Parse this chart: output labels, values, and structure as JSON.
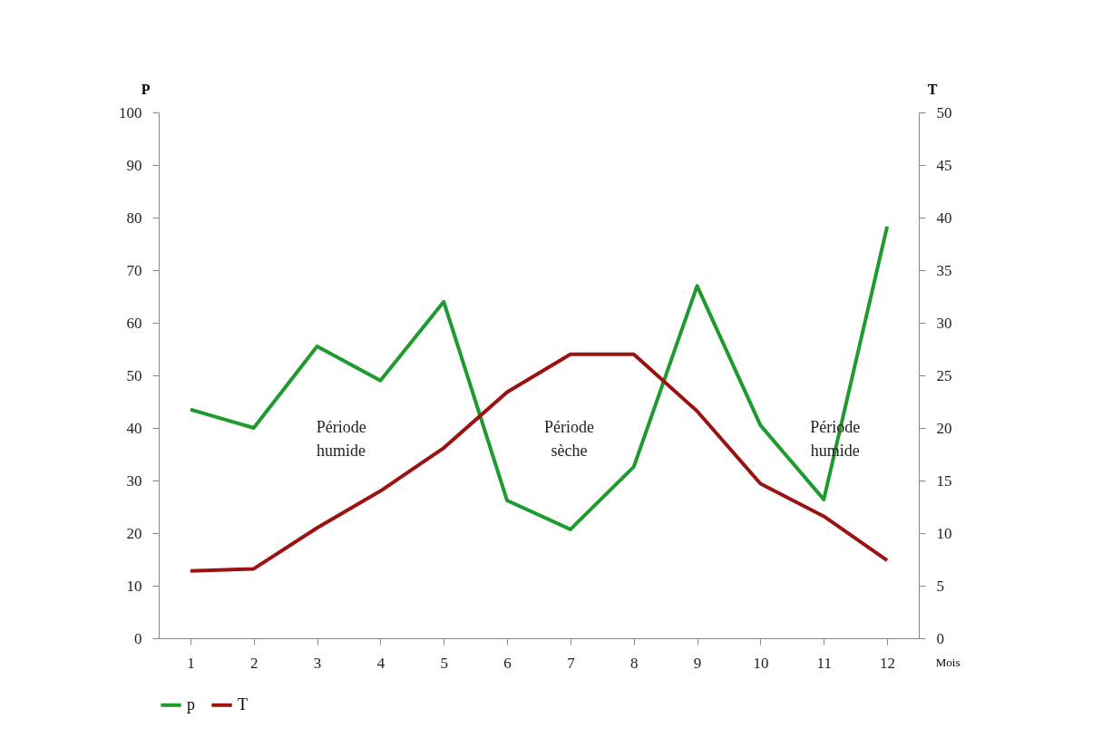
{
  "chart_data": {
    "type": "line",
    "xlabel": "Mois",
    "ylabel": "P",
    "y2label": "T",
    "x": [
      1,
      2,
      3,
      4,
      5,
      6,
      7,
      8,
      9,
      10,
      11,
      12
    ],
    "xlim": [
      0.5,
      12.5
    ],
    "xticks": [
      1,
      2,
      3,
      4,
      5,
      6,
      7,
      8,
      9,
      10,
      11,
      12
    ],
    "ylim": [
      0,
      100
    ],
    "yticks": [
      0,
      10,
      20,
      30,
      40,
      50,
      60,
      70,
      80,
      90,
      100
    ],
    "y2lim": [
      0,
      50
    ],
    "y2ticks": [
      0,
      5,
      10,
      15,
      20,
      25,
      30,
      35,
      40,
      45,
      50
    ],
    "series": [
      {
        "name": "p",
        "color": "#1e9a2e",
        "values": [
          43.5,
          40,
          55.5,
          49,
          64,
          26.2,
          20.7,
          32.6,
          67,
          40.5,
          26.4,
          78.3
        ]
      },
      {
        "name": "T",
        "color": "#9b1212",
        "axis": "y2",
        "values": [
          6.4,
          6.6,
          10.5,
          14,
          18.1,
          23.4,
          27,
          27,
          21.6,
          14.7,
          11.6,
          7.4
        ]
      }
    ],
    "annotations": [
      "Période humide",
      "Période sèche",
      "Période humide"
    ],
    "grid": false,
    "legend": "bottom",
    "marker": "none",
    "line_style": "solid"
  }
}
